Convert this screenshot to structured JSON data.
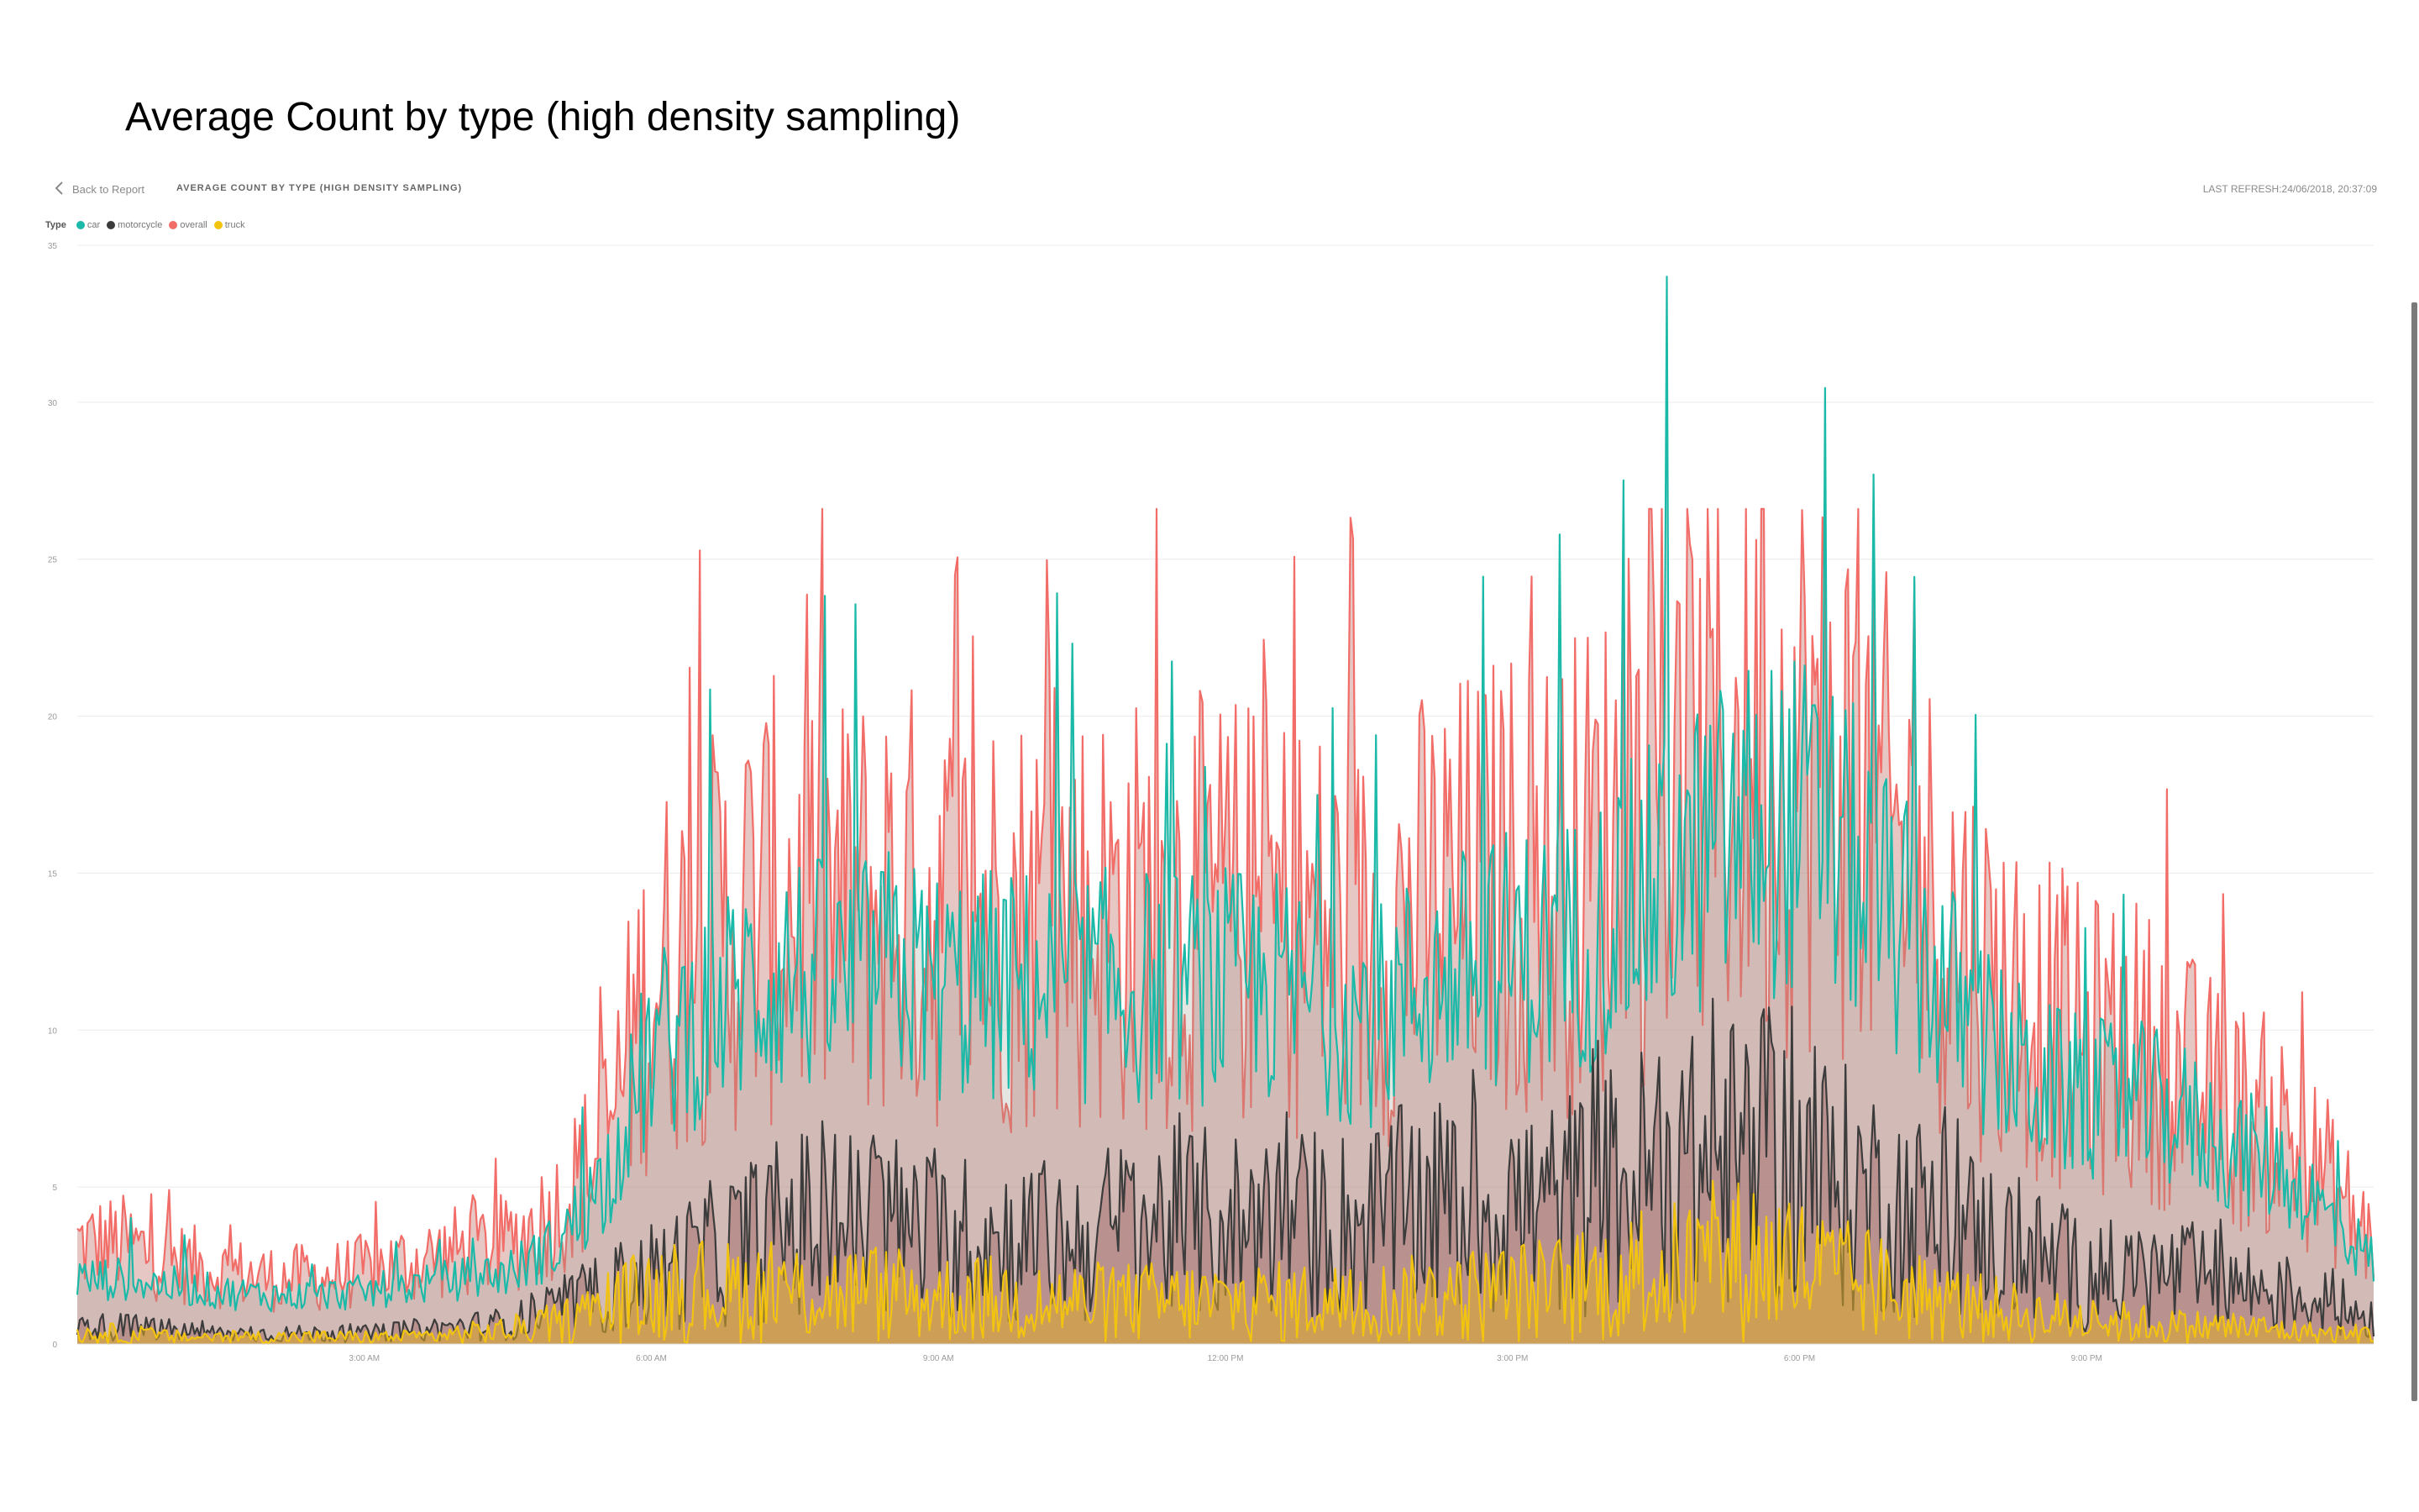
{
  "document_title": "Average Count by type (high density sampling)",
  "report": {
    "back_label": "Back to Report",
    "visual_title": "AVERAGE COUNT BY TYPE (HIGH DENSITY SAMPLING)",
    "last_refresh": "LAST REFRESH:24/06/2018, 20:37:09"
  },
  "legend": {
    "title": "Type",
    "items": [
      {
        "label": "car",
        "color": "#1ab9a8"
      },
      {
        "label": "motorcycle",
        "color": "#3c3c3c"
      },
      {
        "label": "overall",
        "color": "#f26c68"
      },
      {
        "label": "truck",
        "color": "#f2c40f"
      }
    ]
  },
  "chart_data": {
    "type": "area",
    "title": "AVERAGE COUNT BY TYPE (HIGH DENSITY SAMPLING)",
    "xlabel": "",
    "ylabel": "",
    "x_unit": "hour of day",
    "xlim": [
      0,
      24
    ],
    "ylim": [
      0,
      35
    ],
    "y_ticks": [
      0,
      5,
      10,
      15,
      20,
      25,
      30,
      35
    ],
    "x_ticks": [
      {
        "value": 3,
        "label": "3:00 AM"
      },
      {
        "value": 6,
        "label": "6:00 AM"
      },
      {
        "value": 9,
        "label": "9:00 AM"
      },
      {
        "value": 12,
        "label": "12:00 PM"
      },
      {
        "value": 15,
        "label": "3:00 PM"
      },
      {
        "value": 18,
        "label": "6:00 PM"
      },
      {
        "value": 21,
        "label": "9:00 PM"
      }
    ],
    "grid": true,
    "legend_position": "top-left",
    "series": [
      {
        "name": "overall",
        "color": "#f26c68",
        "x": [
          0,
          0.5,
          1,
          1.5,
          2,
          2.5,
          3,
          3.5,
          4,
          4.5,
          5,
          5.5,
          6,
          6.5,
          7,
          7.5,
          8,
          8.5,
          9,
          9.5,
          10,
          10.5,
          11,
          11.5,
          12,
          12.5,
          13,
          13.5,
          14,
          14.5,
          15,
          15.5,
          16,
          16.5,
          17,
          17.5,
          18,
          18.5,
          19,
          19.5,
          20,
          20.5,
          21,
          21.5,
          22,
          22.5,
          23,
          23.5,
          24
        ],
        "values": [
          3,
          3,
          2.5,
          2.2,
          2,
          2,
          2.2,
          2.5,
          2.8,
          3,
          4,
          6,
          11,
          12,
          13,
          13.5,
          13,
          13.5,
          13,
          13,
          13,
          13,
          13,
          13,
          13,
          13,
          12.5,
          12,
          13,
          13.5,
          14,
          14,
          15,
          16,
          17,
          18,
          18,
          17,
          15,
          13,
          11,
          10,
          9,
          9,
          8,
          7,
          6.5,
          5,
          3
        ],
        "peak_max": 26.6
      },
      {
        "name": "car",
        "color": "#1ab9a8",
        "x": [
          0,
          0.5,
          1,
          1.5,
          2,
          2.5,
          3,
          3.5,
          4,
          4.5,
          5,
          5.5,
          6,
          6.5,
          7,
          7.5,
          8,
          8.5,
          9,
          9.5,
          10,
          10.5,
          11,
          11.5,
          12,
          12.5,
          13,
          13.5,
          14,
          14.5,
          15,
          15.5,
          16,
          16.5,
          17,
          17.5,
          18,
          18.5,
          19,
          19.5,
          20,
          20.5,
          21,
          21.5,
          22,
          22.5,
          23,
          23.5,
          24
        ],
        "values": [
          2,
          2,
          1.8,
          1.6,
          1.5,
          1.5,
          1.6,
          1.8,
          2,
          2.2,
          3,
          5,
          9,
          10,
          11,
          11.5,
          11,
          11.5,
          11,
          11,
          11,
          11,
          11,
          11,
          11,
          11,
          10.5,
          10,
          11,
          11.5,
          12,
          12,
          13,
          14,
          15,
          16,
          16,
          15,
          13,
          11,
          9,
          8,
          7.5,
          7.5,
          7,
          6,
          5.5,
          4,
          2.5
        ],
        "peak_max": 34
      },
      {
        "name": "motorcycle",
        "color": "#3c3c3c",
        "x": [
          0,
          0.5,
          1,
          1.5,
          2,
          2.5,
          3,
          3.5,
          4,
          4.5,
          5,
          5.5,
          6,
          6.5,
          7,
          7.5,
          8,
          8.5,
          9,
          9.5,
          10,
          10.5,
          11,
          11.5,
          12,
          12.5,
          13,
          13.5,
          14,
          14.5,
          15,
          15.5,
          16,
          16.5,
          17,
          17.5,
          18,
          18.5,
          19,
          19.5,
          20,
          20.5,
          21,
          21.5,
          22,
          22.5,
          23,
          23.5,
          24
        ],
        "values": [
          0.5,
          0.5,
          0.4,
          0.3,
          0.3,
          0.3,
          0.3,
          0.4,
          0.5,
          0.6,
          1,
          1.5,
          2,
          2.5,
          3,
          3.5,
          3.5,
          3.5,
          3,
          3,
          3,
          3,
          3.5,
          3.5,
          3.5,
          3.5,
          3.5,
          3.5,
          4,
          4,
          4,
          4,
          4.5,
          5,
          5,
          5.5,
          5,
          4.5,
          4,
          3.5,
          3,
          2.5,
          2,
          2,
          2,
          1.8,
          1.5,
          1.2,
          0.8
        ],
        "peak_max": 11
      },
      {
        "name": "truck",
        "color": "#f2c40f",
        "x": [
          0,
          0.5,
          1,
          1.5,
          2,
          2.5,
          3,
          3.5,
          4,
          4.5,
          5,
          5.5,
          6,
          6.5,
          7,
          7.5,
          8,
          8.5,
          9,
          9.5,
          10,
          10.5,
          11,
          11.5,
          12,
          12.5,
          13,
          13.5,
          14,
          14.5,
          15,
          15.5,
          16,
          16.5,
          17,
          17.5,
          18,
          18.5,
          19,
          19.5,
          20,
          20.5,
          21,
          21.5,
          22,
          22.5,
          23,
          23.5,
          24
        ],
        "values": [
          0.3,
          0.3,
          0.2,
          0.2,
          0.2,
          0.2,
          0.2,
          0.2,
          0.3,
          0.4,
          0.6,
          1,
          1.5,
          1.5,
          1.5,
          1.5,
          1.5,
          1.4,
          1.3,
          1.3,
          1.2,
          1.2,
          1.2,
          1.2,
          1.2,
          1.2,
          1.2,
          1.2,
          1.3,
          1.4,
          1.5,
          1.6,
          1.8,
          2,
          2.2,
          2.5,
          2.2,
          1.8,
          1.5,
          1.2,
          1,
          0.8,
          0.7,
          0.6,
          0.5,
          0.5,
          0.4,
          0.3,
          0.3
        ],
        "peak_max": 5.2
      }
    ]
  }
}
